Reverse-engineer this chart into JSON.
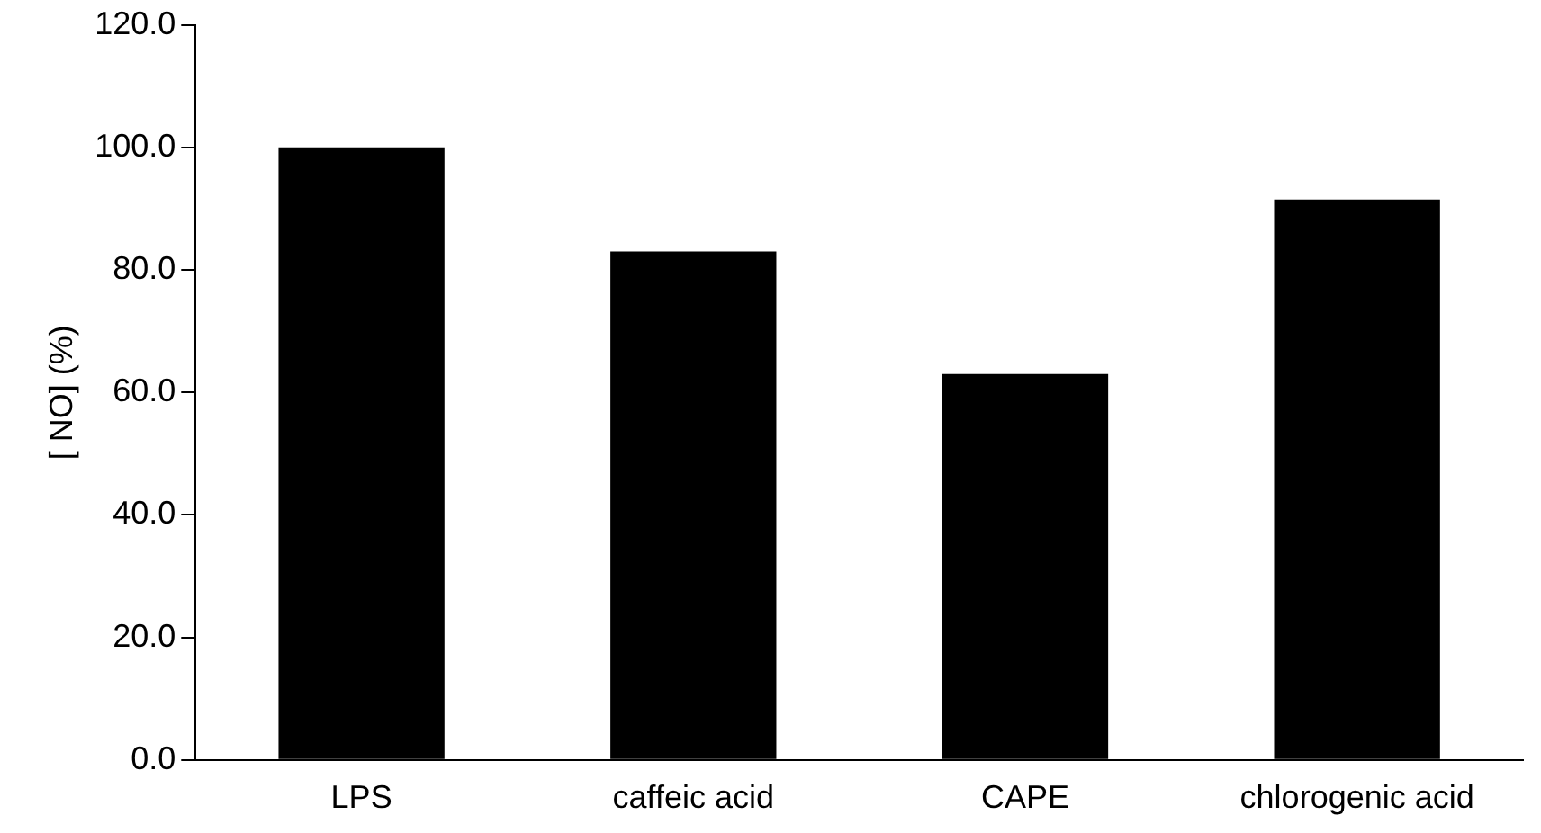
{
  "chart_data": {
    "type": "bar",
    "ylabel": "[ NO] (%)",
    "categories": [
      "LPS",
      "caffeic acid",
      "CAPE",
      "chlorogenic acid"
    ],
    "values": [
      100,
      83,
      63,
      91.5
    ],
    "color": "#000000",
    "ylim": [
      0,
      120
    ],
    "yticks": [
      {
        "value": 0,
        "label": "0.0"
      },
      {
        "value": 20,
        "label": "20.0"
      },
      {
        "value": 40,
        "label": "40.0"
      },
      {
        "value": 60,
        "label": "60.0"
      },
      {
        "value": 80,
        "label": "80.0"
      },
      {
        "value": 100,
        "label": "100.0"
      },
      {
        "value": 120,
        "label": "120.0"
      }
    ],
    "grid": false,
    "legend": false
  }
}
